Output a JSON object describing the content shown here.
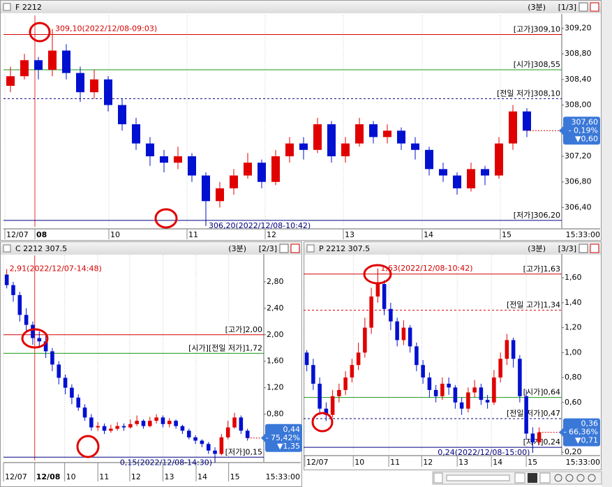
{
  "chart_data": [
    {
      "type": "candlestick",
      "title": "F 2212",
      "period": "(3분)",
      "page": "[1/3]",
      "time": "15:33:00",
      "xlim": [
        0,
        40
      ],
      "ylim": [
        306.1,
        309.4
      ],
      "xticks": [
        {
          "value": 0.1,
          "label": "12/07"
        },
        {
          "value": 2.25,
          "label": "08",
          "bold": true
        },
        {
          "value": 7.55,
          "label": "10"
        },
        {
          "value": 13.15,
          "label": "11"
        },
        {
          "value": 18.75,
          "label": "12"
        },
        {
          "value": 24.35,
          "label": "13"
        },
        {
          "value": 30,
          "label": "14"
        },
        {
          "value": 35.6,
          "label": "15"
        }
      ],
      "yticks": [
        {
          "value": 309.2,
          "label": "309,20"
        },
        {
          "value": 308.8,
          "label": "308,80"
        },
        {
          "value": 308.4,
          "label": "308,40"
        },
        {
          "value": 308.0,
          "label": "308,00"
        },
        {
          "value": 307.2,
          "label": "307,20"
        },
        {
          "value": 306.8,
          "label": "306,80"
        },
        {
          "value": 306.4,
          "label": "306,40"
        }
      ],
      "up_color": "#e00000",
      "down_color": "#0010d0",
      "open": [
        308.3,
        308.45,
        308.7,
        308.55,
        308.85,
        308.5,
        308.2,
        308.4,
        308.0,
        307.7,
        307.4,
        307.2,
        307.1,
        307.2,
        306.9,
        306.5,
        306.7,
        306.9,
        307.1,
        306.8,
        307.2,
        307.4,
        307.3,
        307.7,
        307.2,
        307.4,
        307.7,
        307.5,
        307.6,
        307.4,
        307.3,
        307.0,
        306.9,
        306.7,
        307.0,
        306.9,
        307.4,
        307.9
      ],
      "high": [
        308.6,
        308.8,
        308.75,
        309.1,
        308.95,
        308.6,
        308.55,
        308.45,
        308.1,
        307.8,
        307.5,
        307.3,
        307.35,
        307.25,
        306.95,
        306.8,
        307.0,
        307.25,
        307.15,
        307.3,
        307.5,
        307.5,
        307.8,
        307.75,
        307.5,
        307.8,
        307.75,
        307.7,
        307.65,
        307.5,
        307.35,
        307.1,
        306.95,
        307.1,
        307.05,
        307.5,
        308.0,
        307.95
      ],
      "low": [
        308.2,
        308.4,
        308.4,
        308.45,
        308.4,
        308.05,
        308.1,
        307.9,
        307.6,
        307.3,
        307.05,
        306.95,
        307.0,
        306.8,
        306.2,
        306.4,
        306.6,
        306.85,
        306.7,
        306.75,
        307.1,
        307.15,
        307.25,
        307.1,
        307.1,
        307.35,
        307.4,
        307.4,
        307.3,
        307.15,
        306.9,
        306.8,
        306.6,
        306.65,
        306.75,
        306.85,
        307.3,
        307.5
      ],
      "close": [
        308.45,
        308.7,
        308.55,
        308.85,
        308.5,
        308.2,
        308.4,
        308.0,
        307.7,
        307.4,
        307.2,
        307.1,
        307.2,
        306.9,
        306.5,
        306.7,
        306.9,
        307.1,
        306.8,
        307.2,
        307.4,
        307.3,
        307.7,
        307.2,
        307.4,
        307.7,
        307.5,
        307.6,
        307.4,
        307.3,
        307.0,
        306.9,
        306.7,
        307.0,
        306.9,
        307.4,
        307.9,
        307.6
      ],
      "lines": [
        {
          "label": "[고가]309,10",
          "value": 309.1,
          "color": "#d40000",
          "dash": false
        },
        {
          "label": "[시가]308,55",
          "value": 308.55,
          "color": "#1a9a1a",
          "dash": false
        },
        {
          "label": "[전일 저가]308,10",
          "value": 308.1,
          "color": "#000080",
          "dash": true
        },
        {
          "label": "[저가]306,20",
          "value": 306.2,
          "color": "#000080",
          "dash": false
        }
      ],
      "annotations": [
        {
          "label": "309,10(2022/12/08-09:03)",
          "value": 309.1,
          "x": 3.5,
          "color": "#d40000"
        },
        {
          "label": "306,20(2022/12/08-10:42)",
          "value": 306.2,
          "x": 14.5,
          "color": "#000080"
        }
      ],
      "price_box": {
        "value": 307.6,
        "label": "307,60",
        "change": "- 0,19%",
        "diff": "▼0,60"
      }
    },
    {
      "type": "candlestick",
      "title": "C 2212 307.5",
      "period": "(3분)",
      "page": "[2/3]",
      "time": "15:33:00",
      "xlim": [
        0,
        40
      ],
      "ylim": [
        0.1,
        3.2
      ],
      "xticks": [
        {
          "value": 0,
          "label": "12/07"
        },
        {
          "value": 4.8,
          "label": "12/08",
          "bold": true
        },
        {
          "value": 9.4,
          "label": "10"
        },
        {
          "value": 14.5,
          "label": "11"
        },
        {
          "value": 19.4,
          "label": "12"
        },
        {
          "value": 24.5,
          "label": "13"
        },
        {
          "value": 29.6,
          "label": "14"
        },
        {
          "value": 34.6,
          "label": "15"
        }
      ],
      "yticks": [
        {
          "value": 2.8,
          "label": "2,80"
        },
        {
          "value": 2.4,
          "label": "2,40"
        },
        {
          "value": 2.0,
          "label": "2,00"
        },
        {
          "value": 1.6,
          "label": "1,60"
        },
        {
          "value": 1.2,
          "label": "1,20"
        },
        {
          "value": 0.8,
          "label": "0,80"
        }
      ],
      "up_color": "#e00000",
      "down_color": "#0010d0",
      "open": [
        2.91,
        2.75,
        2.6,
        2.3,
        2.15,
        1.95,
        1.9,
        1.75,
        1.55,
        1.35,
        1.2,
        1.05,
        0.9,
        0.75,
        0.6,
        0.62,
        0.55,
        0.58,
        0.62,
        0.6,
        0.65,
        0.7,
        0.62,
        0.7,
        0.75,
        0.65,
        0.7,
        0.62,
        0.55,
        0.45,
        0.4,
        0.35,
        0.25,
        0.2,
        0.45,
        0.6,
        0.75,
        0.55
      ],
      "high": [
        2.91,
        2.8,
        2.65,
        2.4,
        2.2,
        2.05,
        2.0,
        1.8,
        1.6,
        1.4,
        1.25,
        1.1,
        0.95,
        0.8,
        0.68,
        0.66,
        0.64,
        0.68,
        0.66,
        0.72,
        0.78,
        0.72,
        0.76,
        0.8,
        0.78,
        0.74,
        0.72,
        0.64,
        0.58,
        0.48,
        0.42,
        0.38,
        0.3,
        0.5,
        0.7,
        0.82,
        0.78,
        0.58
      ],
      "low": [
        2.7,
        2.5,
        2.2,
        2.05,
        1.85,
        1.8,
        1.65,
        1.45,
        1.25,
        1.1,
        0.95,
        0.85,
        0.7,
        0.55,
        0.55,
        0.5,
        0.52,
        0.55,
        0.55,
        0.58,
        0.62,
        0.58,
        0.6,
        0.66,
        0.6,
        0.6,
        0.58,
        0.5,
        0.42,
        0.35,
        0.3,
        0.2,
        0.15,
        0.18,
        0.42,
        0.58,
        0.5,
        0.4
      ],
      "close": [
        2.75,
        2.6,
        2.3,
        2.15,
        1.95,
        1.9,
        1.75,
        1.55,
        1.35,
        1.2,
        1.05,
        0.9,
        0.75,
        0.6,
        0.62,
        0.55,
        0.58,
        0.62,
        0.6,
        0.65,
        0.7,
        0.62,
        0.7,
        0.75,
        0.65,
        0.7,
        0.62,
        0.55,
        0.45,
        0.4,
        0.35,
        0.25,
        0.2,
        0.45,
        0.6,
        0.75,
        0.55,
        0.44
      ],
      "lines": [
        {
          "label": "[고가]2,00",
          "value": 2.0,
          "color": "#d40000",
          "dash": false
        },
        {
          "label": "[시가][전일 저가]1,72",
          "value": 1.72,
          "color": "#1a9a1a",
          "dash": false
        },
        {
          "label": "[저가]0,15",
          "value": 0.15,
          "color": "#000080",
          "dash": false
        }
      ],
      "annotations": [
        {
          "label": "2,91(2022/12/07-14:48)",
          "value": 2.91,
          "x": 0.5,
          "color": "#d40000"
        },
        {
          "label": "0,15(2022/12/08-14:30)",
          "value": 0.15,
          "x": 32.5,
          "color": "#000080"
        }
      ],
      "price_box": {
        "value": 0.44,
        "label": "0,44",
        "change": "- 75,42%",
        "diff": "▼1,35"
      }
    },
    {
      "type": "candlestick",
      "title": "P 2212 307.5",
      "period": "(3분)",
      "page": "[3/3]",
      "time": "15:33:00",
      "xlim": [
        0,
        40
      ],
      "ylim": [
        0.19,
        1.78
      ],
      "xticks": [
        {
          "value": 0.2,
          "label": "12/07"
        },
        {
          "value": 7.7,
          "label": "10"
        },
        {
          "value": 13.2,
          "label": "11"
        },
        {
          "value": 18.3,
          "label": "12"
        },
        {
          "value": 23.8,
          "label": "13"
        },
        {
          "value": 29.1,
          "label": "14"
        },
        {
          "value": 34.5,
          "label": "15"
        }
      ],
      "yticks": [
        {
          "value": 1.6,
          "label": "1,60"
        },
        {
          "value": 1.4,
          "label": "1,40"
        },
        {
          "value": 1.2,
          "label": "1,20"
        },
        {
          "value": 1.0,
          "label": "1,00"
        },
        {
          "value": 0.8,
          "label": "0,80"
        },
        {
          "value": 0.6,
          "label": "0,60"
        },
        {
          "value": 0.2,
          "label": "0,20"
        }
      ],
      "up_color": "#e00000",
      "down_color": "#0010d0",
      "open": [
        1.0,
        0.9,
        0.75,
        0.55,
        0.5,
        0.65,
        0.7,
        0.8,
        0.9,
        1.0,
        1.2,
        1.45,
        1.55,
        1.35,
        1.25,
        1.1,
        1.2,
        1.05,
        0.9,
        0.8,
        0.7,
        0.65,
        0.75,
        0.72,
        0.6,
        0.55,
        0.68,
        0.72,
        0.62,
        0.6,
        0.8,
        0.95,
        1.1,
        0.95,
        0.65,
        0.35,
        0.28
      ],
      "high": [
        1.02,
        0.95,
        0.8,
        0.6,
        0.7,
        0.75,
        0.85,
        0.95,
        1.08,
        1.28,
        1.52,
        1.63,
        1.58,
        1.4,
        1.28,
        1.26,
        1.22,
        1.08,
        0.94,
        0.84,
        0.74,
        0.8,
        0.8,
        0.74,
        0.64,
        0.72,
        0.78,
        0.75,
        0.66,
        0.86,
        1.0,
        1.15,
        1.12,
        0.98,
        0.7,
        0.4,
        0.4
      ],
      "low": [
        0.85,
        0.7,
        0.5,
        0.45,
        0.48,
        0.6,
        0.66,
        0.76,
        0.86,
        0.96,
        1.15,
        1.4,
        1.3,
        1.18,
        1.05,
        1.06,
        1.0,
        0.85,
        0.75,
        0.64,
        0.6,
        0.62,
        0.66,
        0.55,
        0.5,
        0.52,
        0.64,
        0.58,
        0.55,
        0.58,
        0.76,
        0.9,
        0.88,
        0.6,
        0.3,
        0.24,
        0.26
      ],
      "close": [
        0.9,
        0.75,
        0.55,
        0.5,
        0.65,
        0.7,
        0.8,
        0.9,
        1.0,
        1.2,
        1.45,
        1.55,
        1.35,
        1.25,
        1.1,
        1.2,
        1.05,
        0.9,
        0.8,
        0.7,
        0.65,
        0.75,
        0.72,
        0.6,
        0.55,
        0.68,
        0.72,
        0.62,
        0.6,
        0.8,
        0.95,
        1.1,
        0.95,
        0.65,
        0.35,
        0.28,
        0.36
      ],
      "lines": [
        {
          "label": "[고가]1,63",
          "value": 1.63,
          "color": "#d40000",
          "dash": false
        },
        {
          "label": "[전일 고가]1,34",
          "value": 1.34,
          "color": "#d40000",
          "dash": true
        },
        {
          "label": "[시가]0,64",
          "value": 0.64,
          "color": "#1a9a1a",
          "dash": false
        },
        {
          "label": "[전일 저가]0,47",
          "value": 0.47,
          "color": "#000080",
          "dash": true
        },
        {
          "label": "[저가]0,24",
          "value": 0.24,
          "color": "#000080",
          "dash": false
        }
      ],
      "annotations": [
        {
          "label": "1,63(2022/12/08-10:42)",
          "value": 1.63,
          "x": 11.5,
          "color": "#d40000"
        },
        {
          "label": "0,24(2022/12/08-15:00)",
          "value": 0.24,
          "x": 35.5,
          "color": "#000080"
        }
      ],
      "price_box": {
        "value": 0.36,
        "label": "0,36",
        "change": "- 66,36%",
        "diff": "▼0,71"
      }
    }
  ]
}
